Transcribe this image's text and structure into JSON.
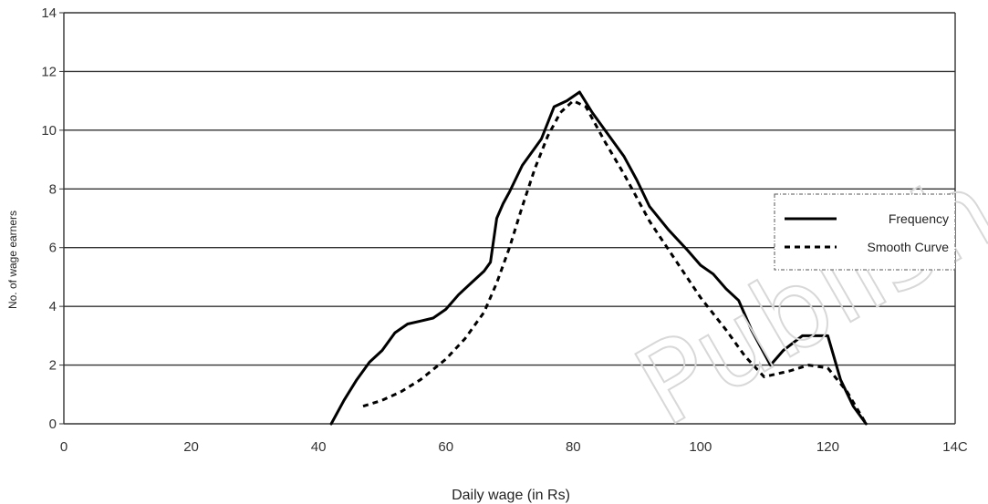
{
  "chart_data": {
    "type": "line",
    "title": "",
    "xlabel": "Daily wage  (in Rs)",
    "ylabel": "No. of wage earners",
    "xlim": [
      0,
      140
    ],
    "ylim": [
      0,
      14
    ],
    "x_ticks": [
      "0",
      "20",
      "40",
      "60",
      "80",
      "100",
      "120",
      "14C"
    ],
    "y_ticks": [
      "0",
      "2",
      "4",
      "6",
      "8",
      "10",
      "12",
      "14"
    ],
    "grid": "horizontal",
    "legend_position": "right",
    "series": [
      {
        "name": "Frequency",
        "style": "solid",
        "color": "#000000",
        "x": [
          42,
          44,
          46,
          48,
          50,
          52,
          54,
          56,
          58,
          60,
          62,
          64,
          66,
          67,
          68,
          69,
          70,
          72,
          74,
          75,
          77,
          79,
          81,
          83,
          85,
          88,
          90,
          92,
          95,
          98,
          100,
          102,
          104,
          106,
          108,
          110,
          111,
          113,
          116,
          120,
          122,
          124,
          126
        ],
        "y": [
          0.0,
          0.8,
          1.5,
          2.1,
          2.5,
          3.1,
          3.4,
          3.5,
          3.6,
          3.9,
          4.4,
          4.8,
          5.2,
          5.5,
          7.0,
          7.5,
          7.9,
          8.8,
          9.4,
          9.7,
          10.8,
          11.0,
          11.3,
          10.6,
          10.0,
          9.1,
          8.3,
          7.4,
          6.6,
          5.9,
          5.4,
          5.1,
          4.6,
          4.2,
          3.2,
          2.4,
          2.0,
          2.5,
          3.0,
          3.0,
          1.5,
          0.6,
          0.0
        ]
      },
      {
        "name": "Smooth Curve",
        "style": "dashed",
        "color": "#000000",
        "x": [
          47,
          50,
          53,
          56,
          60,
          63,
          66,
          68,
          70,
          72,
          74,
          76,
          78,
          80,
          82,
          85,
          88,
          92,
          96,
          100,
          104,
          107,
          110,
          112,
          114,
          117,
          120,
          123,
          126
        ],
        "y": [
          0.6,
          0.8,
          1.1,
          1.5,
          2.2,
          2.9,
          3.8,
          4.8,
          6.0,
          7.4,
          8.7,
          9.8,
          10.6,
          11.0,
          10.8,
          9.6,
          8.5,
          6.9,
          5.6,
          4.3,
          3.2,
          2.3,
          1.6,
          1.7,
          1.8,
          2.0,
          1.9,
          1.1,
          0.0
        ]
      }
    ],
    "legend": {
      "items": [
        {
          "label": "Frequency",
          "style": "solid"
        },
        {
          "label": "Smooth Curve",
          "style": "dashed"
        }
      ]
    }
  },
  "watermark": {
    "text": "Published"
  }
}
